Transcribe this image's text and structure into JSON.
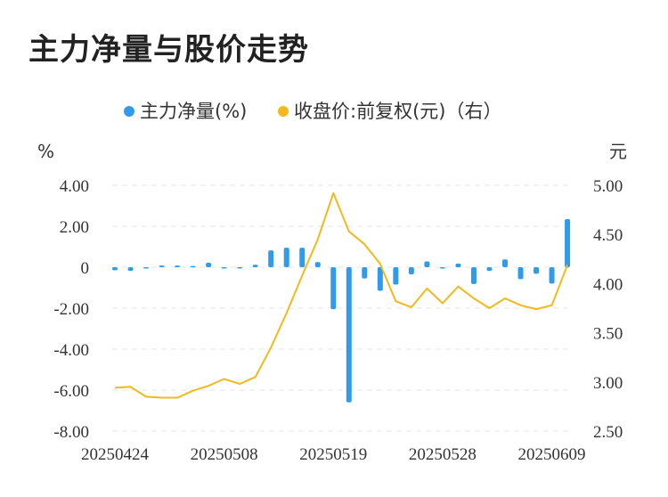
{
  "chart_data": {
    "type": "bar+line",
    "title": "主力净量与股价走势",
    "legend": [
      {
        "name": "主力净量(%)",
        "color": "#2f9bea"
      },
      {
        "name": "收盘价:前复权(元)（右）",
        "color": "#f5b81c"
      }
    ],
    "y_left": {
      "unit": "%",
      "min": -8,
      "max": 4,
      "ticks": [
        "4.00",
        "2.00",
        "0",
        "-2.00",
        "-4.00",
        "-6.00",
        "-8.00"
      ],
      "tick_values": [
        4,
        2,
        0,
        -2,
        -4,
        -6,
        -8
      ]
    },
    "y_right": {
      "unit": "元",
      "min": 2.5,
      "max": 5.0,
      "ticks": [
        "5.00",
        "4.50",
        "4.00",
        "3.50",
        "3.00",
        "2.50"
      ],
      "tick_values": [
        5,
        4.5,
        4,
        3.5,
        3,
        2.5
      ]
    },
    "x_tick_labels": [
      {
        "label": "20250424",
        "index": 0
      },
      {
        "label": "20250508",
        "index": 7
      },
      {
        "label": "20250519",
        "index": 14
      },
      {
        "label": "20250528",
        "index": 21
      },
      {
        "label": "20250609",
        "index": 28
      }
    ],
    "net_volume_pct": [
      -0.15,
      -0.18,
      -0.05,
      0.08,
      0.08,
      0.06,
      0.22,
      -0.06,
      -0.05,
      0.12,
      0.82,
      0.95,
      0.95,
      0.25,
      -2.05,
      -6.6,
      -0.55,
      -1.15,
      -0.85,
      -0.35,
      0.28,
      -0.05,
      0.18,
      -0.82,
      -0.18,
      0.38,
      -0.58,
      -0.32,
      -0.8,
      2.35
    ],
    "close_price": [
      2.94,
      2.95,
      2.85,
      2.84,
      2.84,
      2.91,
      2.96,
      3.03,
      2.98,
      3.05,
      3.35,
      3.7,
      4.08,
      4.45,
      4.92,
      4.53,
      4.4,
      4.2,
      3.82,
      3.76,
      3.95,
      3.8,
      3.97,
      3.85,
      3.75,
      3.85,
      3.78,
      3.74,
      3.78,
      4.19
    ]
  }
}
